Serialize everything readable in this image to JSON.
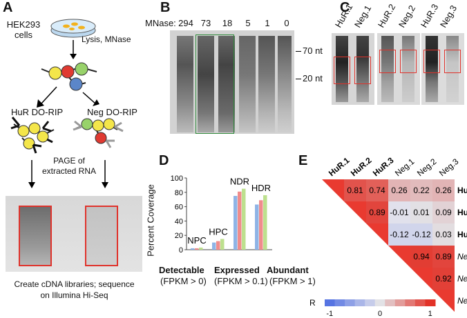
{
  "panel_a": {
    "label": "A",
    "cells": "HEK293\ncells",
    "step1": "Lysis, MNase",
    "hur_rip": "HuR DO-RIP",
    "neg_rip": "Neg DO-RIP",
    "page_line1": "PAGE of",
    "page_line2": "extracted RNA",
    "caption_line1": "Create cDNA libraries; sequence",
    "caption_line2": "on Illumina Hi-Seq"
  },
  "panel_b": {
    "label": "B",
    "mnase_label": "MNase:",
    "lanes": [
      "294",
      "73",
      "18",
      "5",
      "1",
      "0"
    ],
    "marker_70": "70 nt",
    "marker_20": "20 nt"
  },
  "panel_c": {
    "label": "C",
    "lanes": [
      "HuR.1",
      "Neg.1",
      "HuR.2",
      "Neg.2",
      "HuR.3",
      "Neg.3"
    ]
  },
  "panel_d": {
    "label": "D",
    "ylabel": "Percent Coverage",
    "legend": [
      {
        "name": "Detectable",
        "sub": "(FPKM > 0)",
        "color": "#4a7fc1"
      },
      {
        "name": "Expressed",
        "sub": "(FPKM > 0.1)",
        "color": "#e0403a"
      },
      {
        "name": "Abundant",
        "sub": "(FPKM > 1)",
        "color": "#8dbb3c"
      }
    ]
  },
  "chart_data": {
    "type": "bar",
    "categories": [
      "NPC",
      "HPC",
      "NDR",
      "HDR"
    ],
    "series": [
      {
        "name": "Detectable",
        "values": [
          2,
          10,
          75,
          63
        ]
      },
      {
        "name": "Expressed",
        "values": [
          2,
          12,
          81,
          69
        ]
      },
      {
        "name": "Abundant",
        "values": [
          3,
          15,
          85,
          76
        ]
      }
    ],
    "colors": [
      "#8fb4e6",
      "#f08c8c",
      "#bde08e"
    ],
    "ylim": [
      0,
      100
    ],
    "yticks": [
      0,
      20,
      40,
      60,
      80,
      100
    ],
    "ylabel": "Percent Coverage",
    "xlabel": ""
  },
  "panel_e": {
    "label": "E",
    "samples": [
      "HuR.1",
      "HuR.2",
      "HuR.3",
      "Neg.1",
      "Neg.2",
      "Neg.3"
    ],
    "matrix": [
      [
        null,
        "0.81",
        "0.74",
        "0.26",
        "0.22",
        "0.26"
      ],
      [
        null,
        null,
        "0.89",
        "-0.01",
        "0.01",
        "0.09"
      ],
      [
        null,
        null,
        null,
        "-0.12",
        "-0.12",
        "0.03"
      ],
      [
        null,
        null,
        null,
        null,
        "0.94",
        "0.89"
      ],
      [
        null,
        null,
        null,
        null,
        null,
        "0.92"
      ]
    ],
    "scale_label": "R",
    "scale_ticks": [
      "-1",
      "0",
      "1"
    ]
  }
}
